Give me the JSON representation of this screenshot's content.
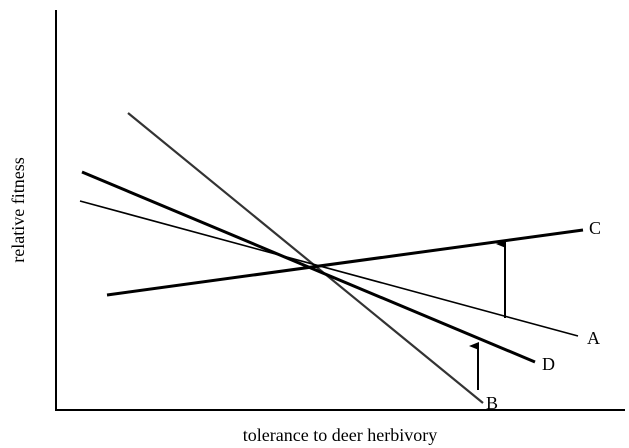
{
  "axes": {
    "x_label": "tolerance to deer herbivory",
    "y_label": "relative fitness"
  },
  "lines": [
    {
      "label": "A"
    },
    {
      "label": "B"
    },
    {
      "label": "C"
    },
    {
      "label": "D"
    }
  ]
}
